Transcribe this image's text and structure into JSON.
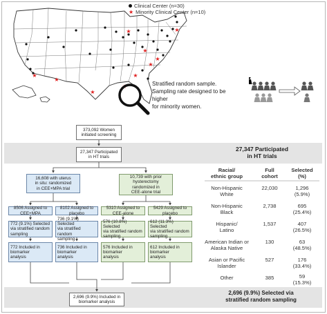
{
  "legend": {
    "clinical": "Clinical Center (n=30)",
    "minority": "Minority Clinical Center (n=10)"
  },
  "sampling": {
    "line1": "Stratified random sample.",
    "line2": "Sampling rate designed to be higher",
    "line3": "for minority women."
  },
  "flow": {
    "screening": [
      "373,092 Women",
      "initiated screening"
    ],
    "participated": [
      "27,347 Participated",
      "in HT trials"
    ],
    "uterus": [
      "16,608 with uterus",
      "in situ: randomized",
      "in CEE+MPA trial"
    ],
    "hyster": [
      "10,739 with prior",
      "hysterectomy",
      "randomized in",
      "CEE-alone trial"
    ],
    "a1": [
      "8506 Assigned to",
      "CEE+MPA"
    ],
    "a2": [
      "8102 Assigned to",
      "placebo"
    ],
    "a3": [
      "5310 Assigned to",
      "CEE-alone"
    ],
    "a4": [
      "5429 Assigned to",
      "placebo"
    ],
    "s1": [
      "772 (9.1%) Selected",
      "via stratified random",
      "sampling"
    ],
    "s2": [
      "736 (9.1%) Selected",
      "via stratified random",
      "sampling"
    ],
    "s3": [
      "576 (10.8%) Selected",
      "via stratified random",
      "sampling"
    ],
    "s4": [
      "612 (11.3%) Selected",
      "via stratified random",
      "sampling"
    ],
    "b1": [
      "772 Included in",
      "biomarker",
      "analysis"
    ],
    "b2": [
      "736 Included in",
      "biomarker",
      "analysis"
    ],
    "b3": [
      "576 Included in",
      "biomarker",
      "analysis"
    ],
    "b4": [
      "612 Included in",
      "biomarker",
      "analysis"
    ],
    "final": [
      "2,696 (9.9%) Included in",
      "biomarker analysis"
    ]
  },
  "table": {
    "title": [
      "27,347 Participated",
      "in HT trials"
    ],
    "headers": [
      [
        "Racial/",
        "ethnic group"
      ],
      [
        "Full",
        "cohort"
      ],
      [
        "Selected",
        "(%)"
      ]
    ],
    "rows": [
      {
        "group": [
          "Non-Hispanic",
          "White"
        ],
        "full": "22,030",
        "sel": [
          "1,296",
          "(5.9%)"
        ]
      },
      {
        "group": [
          "Non-Hispanic",
          "Black"
        ],
        "full": "2,738",
        "sel": [
          "695",
          "(25.4%)"
        ]
      },
      {
        "group": [
          "Hispanic/",
          "Latino"
        ],
        "full": "1,537",
        "sel": [
          "407",
          "(26.5%)"
        ]
      },
      {
        "group": [
          "American Indian or",
          "Alaska Native"
        ],
        "full": "130",
        "sel": [
          "63",
          "(48.5%)"
        ]
      },
      {
        "group": [
          "Asian or Pacific",
          "Islander"
        ],
        "full": "527",
        "sel": [
          "176",
          "(33.4%)"
        ]
      },
      {
        "group": [
          "Other"
        ],
        "full": "385",
        "sel": [
          "59",
          "(15.3%)"
        ]
      }
    ],
    "footer": [
      "2,696 (9.9%) Selected via",
      "stratified random sampling"
    ]
  },
  "colors": {
    "blue_box": "#dbe9f6",
    "green_box": "#e3efd9",
    "gray_band": "#e4e4e4",
    "star_red": "#e02020"
  },
  "icons": [
    "us-map",
    "magnifying-glass-icon",
    "people-group-icon"
  ]
}
